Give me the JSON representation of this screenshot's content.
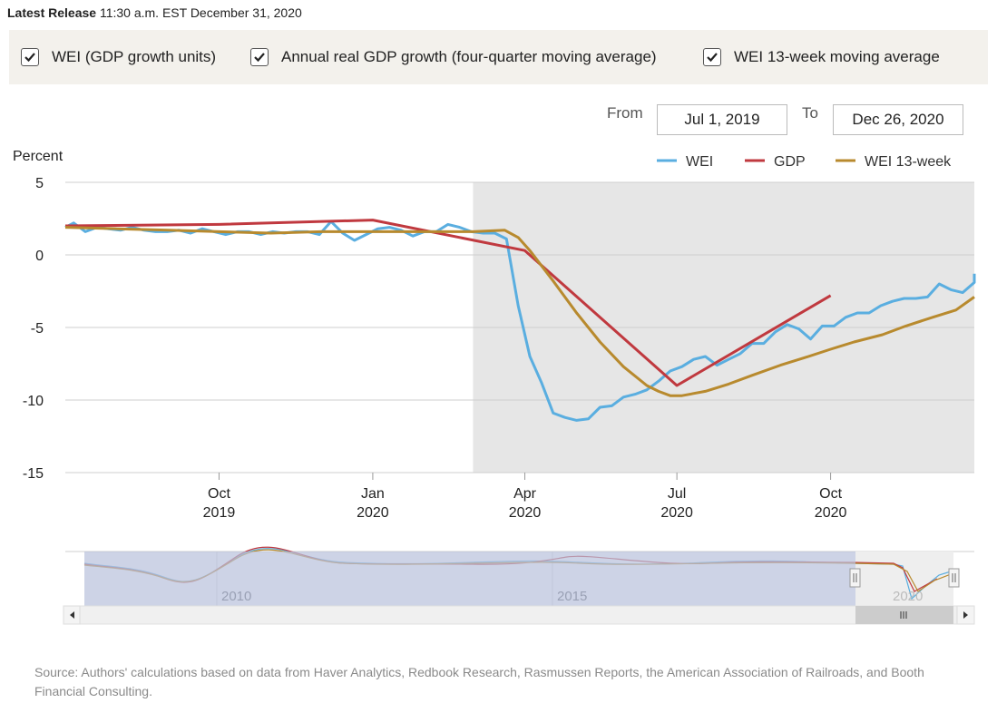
{
  "release": {
    "label": "Latest Release",
    "time": "11:30 a.m. EST December 31, 2020"
  },
  "toggles": [
    {
      "label": "WEI (GDP growth units)",
      "checked": true
    },
    {
      "label": "Annual real GDP growth (four-quarter moving average)",
      "checked": true
    },
    {
      "label": "WEI 13-week moving average",
      "checked": true
    }
  ],
  "range": {
    "from_label": "From",
    "from_value": "Jul 1, 2019",
    "to_label": "To",
    "to_value": "Dec 26, 2020"
  },
  "colors": {
    "wei": "#5aaee0",
    "gdp": "#c0393f",
    "wei13": "#b88a2e",
    "shade": "#e6e6e6",
    "navigator_mask": "#b8c0dc"
  },
  "navigator": {
    "year_labels": [
      "2010",
      "2015",
      "2020"
    ]
  },
  "source": "Source: Authors' calculations based on data from Haver Analytics, Redbook Research, Rasmussen Reports, the American Association of Railroads, and Booth Financial Consulting.",
  "chart_data": {
    "type": "line",
    "ylabel": "Percent",
    "ylim": [
      -15,
      5
    ],
    "yticks": [
      5,
      0,
      -5,
      -10,
      -15
    ],
    "x_range": [
      "2019-07-01",
      "2020-12-26"
    ],
    "xticks": [
      {
        "date": "2019-10-01",
        "line1": "Oct",
        "line2": "2019"
      },
      {
        "date": "2020-01-01",
        "line1": "Jan",
        "line2": "2020"
      },
      {
        "date": "2020-04-01",
        "line1": "Apr",
        "line2": "2020"
      },
      {
        "date": "2020-07-01",
        "line1": "Jul",
        "line2": "2020"
      },
      {
        "date": "2020-10-01",
        "line1": "Oct",
        "line2": "2020"
      }
    ],
    "shaded_region": {
      "start": "2020-03-01",
      "end": "2020-12-26",
      "note": "recession"
    },
    "legend": {
      "position": "top-right",
      "entries": [
        "WEI",
        "GDP",
        "WEI 13-week"
      ]
    },
    "series": [
      {
        "name": "WEI",
        "color_key": "wei",
        "points": [
          [
            "2019-07-01",
            1.9
          ],
          [
            "2019-07-06",
            2.2
          ],
          [
            "2019-07-13",
            1.6
          ],
          [
            "2019-07-20",
            1.9
          ],
          [
            "2019-07-27",
            1.8
          ],
          [
            "2019-08-03",
            1.7
          ],
          [
            "2019-08-10",
            1.9
          ],
          [
            "2019-08-17",
            1.7
          ],
          [
            "2019-08-24",
            1.6
          ],
          [
            "2019-08-31",
            1.6
          ],
          [
            "2019-09-07",
            1.7
          ],
          [
            "2019-09-14",
            1.5
          ],
          [
            "2019-09-21",
            1.8
          ],
          [
            "2019-09-28",
            1.6
          ],
          [
            "2019-10-05",
            1.4
          ],
          [
            "2019-10-12",
            1.6
          ],
          [
            "2019-10-19",
            1.6
          ],
          [
            "2019-10-26",
            1.4
          ],
          [
            "2019-11-02",
            1.6
          ],
          [
            "2019-11-09",
            1.5
          ],
          [
            "2019-11-16",
            1.6
          ],
          [
            "2019-11-23",
            1.6
          ],
          [
            "2019-11-30",
            1.4
          ],
          [
            "2019-12-07",
            2.3
          ],
          [
            "2019-12-14",
            1.5
          ],
          [
            "2019-12-21",
            1.0
          ],
          [
            "2019-12-28",
            1.4
          ],
          [
            "2020-01-04",
            1.8
          ],
          [
            "2020-01-11",
            1.9
          ],
          [
            "2020-01-18",
            1.7
          ],
          [
            "2020-01-25",
            1.3
          ],
          [
            "2020-02-01",
            1.6
          ],
          [
            "2020-02-08",
            1.6
          ],
          [
            "2020-02-15",
            2.1
          ],
          [
            "2020-02-22",
            1.9
          ],
          [
            "2020-02-29",
            1.6
          ],
          [
            "2020-03-07",
            1.5
          ],
          [
            "2020-03-14",
            1.5
          ],
          [
            "2020-03-21",
            1.1
          ],
          [
            "2020-03-28",
            -3.5
          ],
          [
            "2020-04-04",
            -7.0
          ],
          [
            "2020-04-11",
            -8.8
          ],
          [
            "2020-04-18",
            -10.9
          ],
          [
            "2020-04-25",
            -11.2
          ],
          [
            "2020-05-02",
            -11.4
          ],
          [
            "2020-05-09",
            -11.3
          ],
          [
            "2020-05-16",
            -10.5
          ],
          [
            "2020-05-23",
            -10.4
          ],
          [
            "2020-05-30",
            -9.8
          ],
          [
            "2020-06-06",
            -9.6
          ],
          [
            "2020-06-13",
            -9.3
          ],
          [
            "2020-06-20",
            -8.7
          ],
          [
            "2020-06-27",
            -8.0
          ],
          [
            "2020-07-04",
            -7.7
          ],
          [
            "2020-07-11",
            -7.2
          ],
          [
            "2020-07-18",
            -7.0
          ],
          [
            "2020-07-25",
            -7.6
          ],
          [
            "2020-08-01",
            -7.2
          ],
          [
            "2020-08-08",
            -6.8
          ],
          [
            "2020-08-15",
            -6.1
          ],
          [
            "2020-08-22",
            -6.1
          ],
          [
            "2020-08-29",
            -5.3
          ],
          [
            "2020-09-05",
            -4.8
          ],
          [
            "2020-09-12",
            -5.1
          ],
          [
            "2020-09-19",
            -5.8
          ],
          [
            "2020-09-26",
            -4.9
          ],
          [
            "2020-10-03",
            -4.9
          ],
          [
            "2020-10-10",
            -4.3
          ],
          [
            "2020-10-17",
            -4.0
          ],
          [
            "2020-10-24",
            -4.0
          ],
          [
            "2020-10-31",
            -3.5
          ],
          [
            "2020-11-07",
            -3.2
          ],
          [
            "2020-11-14",
            -3.0
          ],
          [
            "2020-11-21",
            -3.0
          ],
          [
            "2020-11-28",
            -2.9
          ],
          [
            "2020-12-05",
            -2.0
          ],
          [
            "2020-12-12",
            -2.4
          ],
          [
            "2020-12-19",
            -2.6
          ],
          [
            "2020-12-26",
            -1.9
          ],
          [
            "2020-12-31",
            -1.3
          ]
        ]
      },
      {
        "name": "GDP",
        "color_key": "gdp",
        "points": [
          [
            "2019-07-01",
            2.0
          ],
          [
            "2019-10-01",
            2.1
          ],
          [
            "2020-01-01",
            2.4
          ],
          [
            "2020-04-01",
            0.3
          ],
          [
            "2020-07-01",
            -9.0
          ],
          [
            "2020-10-01",
            -2.8
          ]
        ]
      },
      {
        "name": "WEI 13-week",
        "color_key": "wei13",
        "points": [
          [
            "2019-07-01",
            1.9
          ],
          [
            "2019-08-01",
            1.8
          ],
          [
            "2019-09-01",
            1.7
          ],
          [
            "2019-10-01",
            1.6
          ],
          [
            "2019-11-01",
            1.5
          ],
          [
            "2019-12-01",
            1.6
          ],
          [
            "2020-01-01",
            1.6
          ],
          [
            "2020-02-01",
            1.6
          ],
          [
            "2020-03-01",
            1.6
          ],
          [
            "2020-03-20",
            1.7
          ],
          [
            "2020-03-28",
            1.2
          ],
          [
            "2020-04-04",
            0.3
          ],
          [
            "2020-04-18",
            -1.8
          ],
          [
            "2020-05-02",
            -4.0
          ],
          [
            "2020-05-16",
            -6.0
          ],
          [
            "2020-05-30",
            -7.7
          ],
          [
            "2020-06-13",
            -9.0
          ],
          [
            "2020-06-20",
            -9.4
          ],
          [
            "2020-06-27",
            -9.7
          ],
          [
            "2020-07-04",
            -9.7
          ],
          [
            "2020-07-18",
            -9.4
          ],
          [
            "2020-08-01",
            -8.9
          ],
          [
            "2020-08-15",
            -8.3
          ],
          [
            "2020-09-01",
            -7.6
          ],
          [
            "2020-09-15",
            -7.1
          ],
          [
            "2020-10-01",
            -6.5
          ],
          [
            "2020-10-15",
            -6.0
          ],
          [
            "2020-11-01",
            -5.5
          ],
          [
            "2020-11-15",
            -4.9
          ],
          [
            "2020-12-01",
            -4.3
          ],
          [
            "2020-12-15",
            -3.8
          ],
          [
            "2020-12-31",
            -2.9
          ]
        ]
      }
    ]
  }
}
